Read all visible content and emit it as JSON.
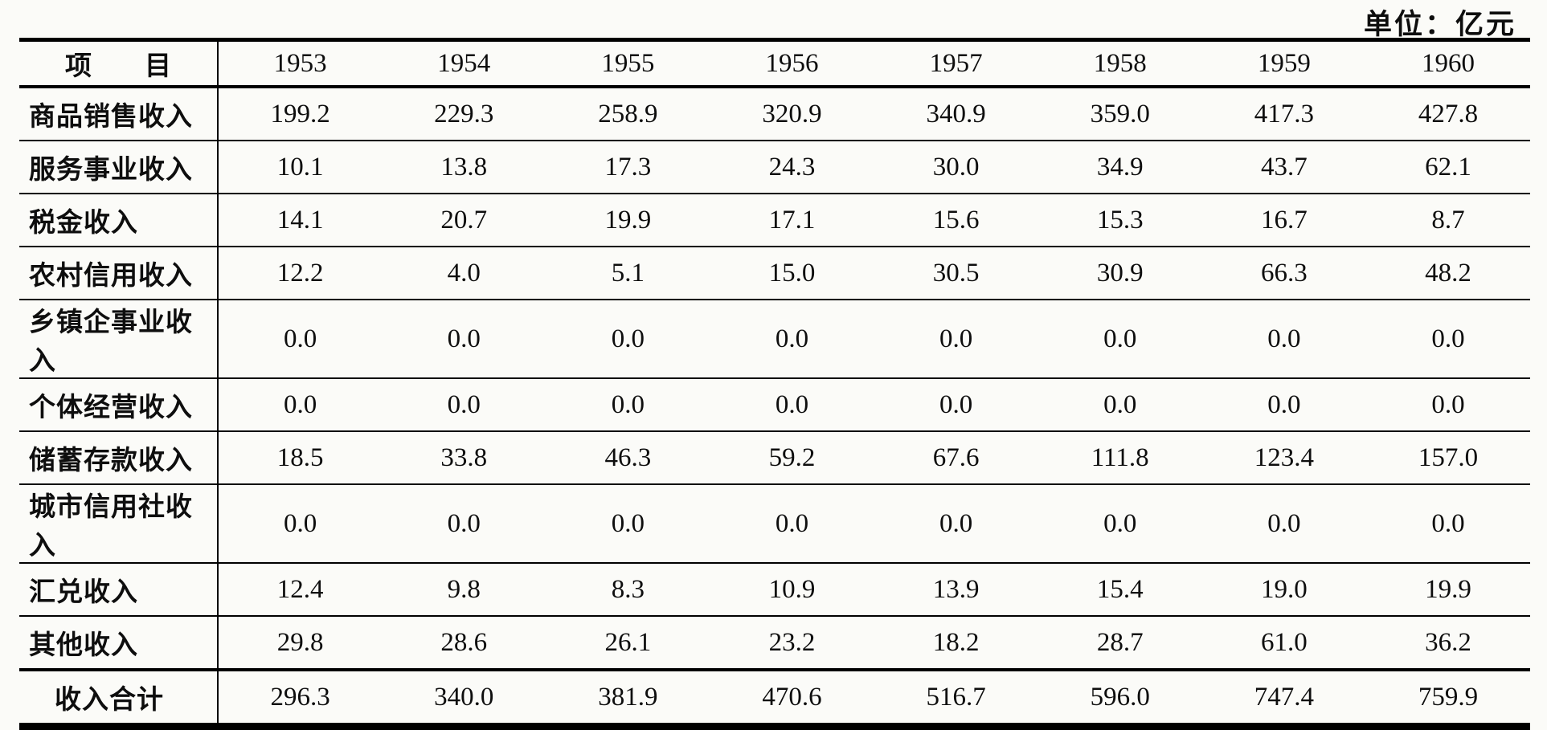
{
  "page": {
    "unit_label": "单位：亿元"
  },
  "table": {
    "header": [
      "项　　目",
      "1953",
      "1954",
      "1955",
      "1956",
      "1957",
      "1958",
      "1959",
      "1960"
    ],
    "rows": [
      {
        "label": "商品销售收入",
        "values": [
          "199.2",
          "229.3",
          "258.9",
          "320.9",
          "340.9",
          "359.0",
          "417.3",
          "427.8"
        ]
      },
      {
        "label": "服务事业收入",
        "values": [
          "10.1",
          "13.8",
          "17.3",
          "24.3",
          "30.0",
          "34.9",
          "43.7",
          "62.1"
        ]
      },
      {
        "label": "税金收入",
        "values": [
          "14.1",
          "20.7",
          "19.9",
          "17.1",
          "15.6",
          "15.3",
          "16.7",
          "8.7"
        ]
      },
      {
        "label": "农村信用收入",
        "values": [
          "12.2",
          "4.0",
          "5.1",
          "15.0",
          "30.5",
          "30.9",
          "66.3",
          "48.2"
        ]
      },
      {
        "label": "乡镇企事业收入",
        "values": [
          "0.0",
          "0.0",
          "0.0",
          "0.0",
          "0.0",
          "0.0",
          "0.0",
          "0.0"
        ]
      },
      {
        "label": "个体经营收入",
        "values": [
          "0.0",
          "0.0",
          "0.0",
          "0.0",
          "0.0",
          "0.0",
          "0.0",
          "0.0"
        ]
      },
      {
        "label": "储蓄存款收入",
        "values": [
          "18.5",
          "33.8",
          "46.3",
          "59.2",
          "67.6",
          "111.8",
          "123.4",
          "157.0"
        ]
      },
      {
        "label": "城市信用社收入",
        "values": [
          "0.0",
          "0.0",
          "0.0",
          "0.0",
          "0.0",
          "0.0",
          "0.0",
          "0.0"
        ]
      },
      {
        "label": "汇兑收入",
        "values": [
          "12.4",
          "9.8",
          "8.3",
          "10.9",
          "13.9",
          "15.4",
          "19.0",
          "19.9"
        ]
      },
      {
        "label": "其他收入",
        "values": [
          "29.8",
          "28.6",
          "26.1",
          "23.2",
          "18.2",
          "28.7",
          "61.0",
          "36.2"
        ]
      },
      {
        "label": "收入合计",
        "values": [
          "296.3",
          "340.0",
          "381.9",
          "470.6",
          "516.7",
          "596.0",
          "747.4",
          "759.9"
        ]
      }
    ]
  }
}
